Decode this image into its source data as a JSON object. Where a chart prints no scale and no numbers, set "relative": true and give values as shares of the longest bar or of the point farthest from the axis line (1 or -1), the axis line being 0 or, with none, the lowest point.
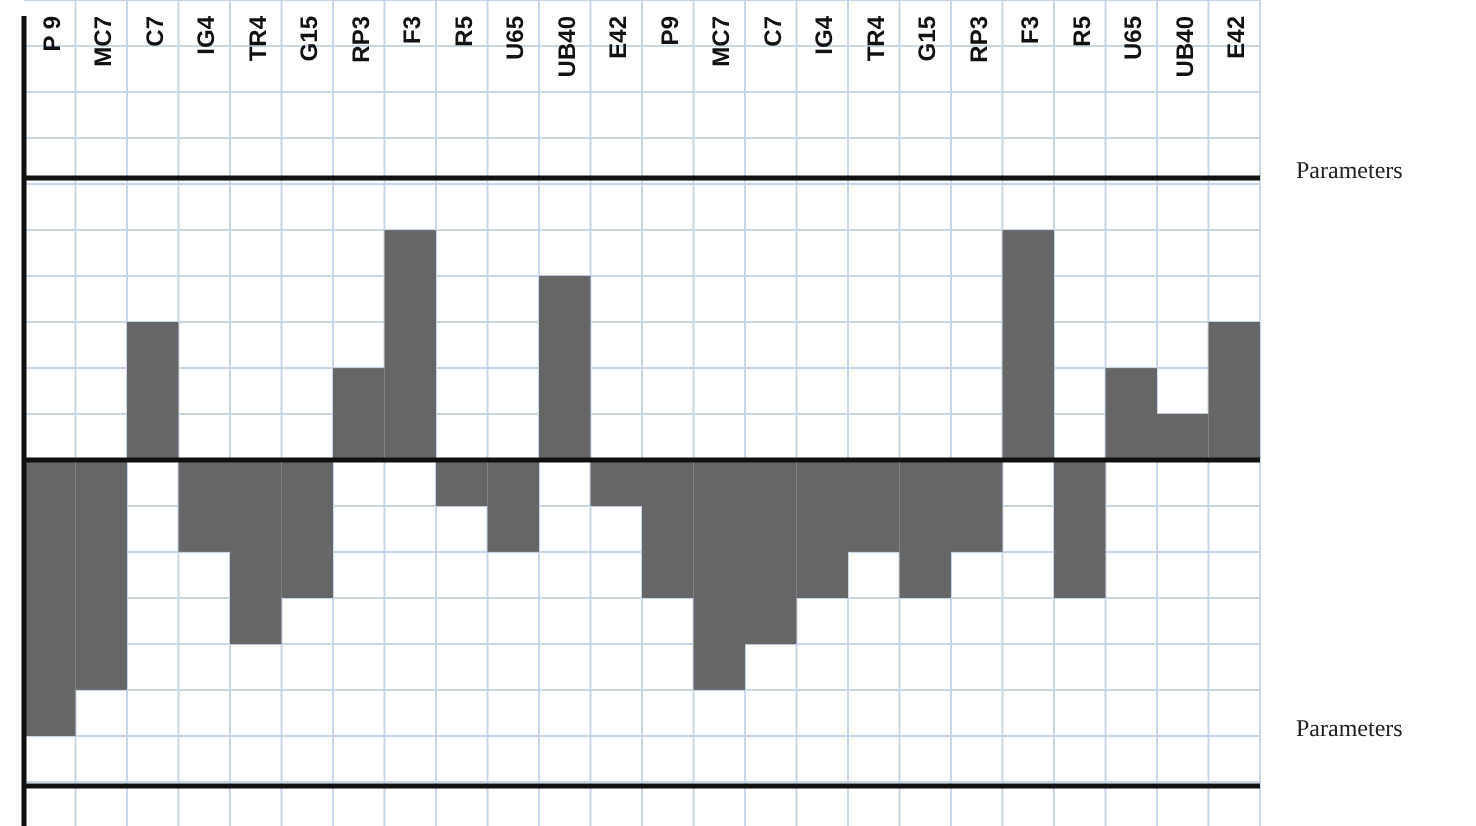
{
  "chart_data": {
    "type": "bar",
    "relative": true,
    "grid": true,
    "color": "#666666",
    "categories": [
      "P 9",
      "MC7",
      "C7",
      "IG4",
      "TR4",
      "G15",
      "RP3",
      "F3",
      "R5",
      "U65",
      "UB40",
      "E42",
      "P9",
      "MC7",
      "C7",
      "IG4",
      "TR4",
      "G15",
      "RP3",
      "F3",
      "R5",
      "U65",
      "UB40",
      "E42"
    ],
    "values": [
      -1,
      -0.833,
      0.5,
      -0.333,
      -0.667,
      -0.5,
      0.333,
      0.833,
      -0.167,
      -0.333,
      0.667,
      -0.167,
      -0.5,
      -0.833,
      -0.667,
      -0.5,
      -0.333,
      -0.5,
      -0.333,
      0.833,
      -0.5,
      0.333,
      0.167,
      0.5
    ],
    "annotations": [
      "Parameters",
      "Parameters"
    ]
  }
}
